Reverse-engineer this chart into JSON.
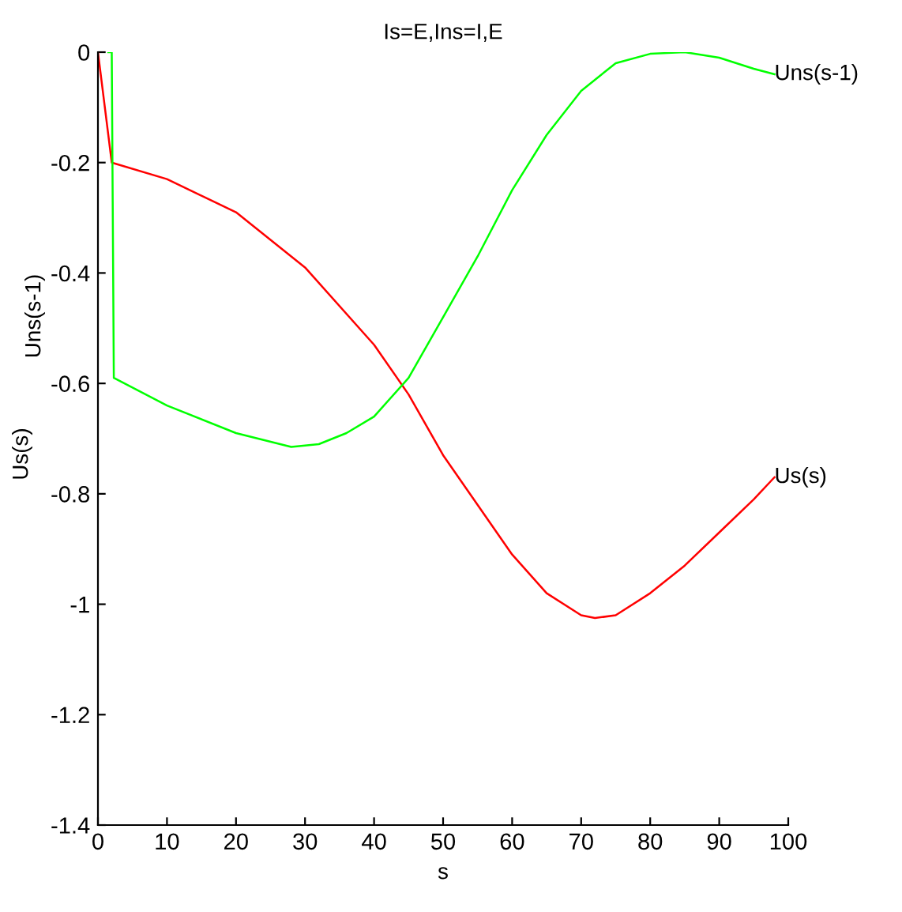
{
  "chart_data": {
    "type": "line",
    "title": "Is=E,Ins=I,E",
    "xlabel": "s",
    "ylabel": "Us(s)",
    "annotations": [
      "Uns(s-1)"
    ],
    "xlim": [
      0,
      100
    ],
    "xticks": [
      0,
      10,
      20,
      30,
      40,
      50,
      60,
      70,
      80,
      90,
      100
    ],
    "ylim": [
      -1.4,
      0
    ],
    "yticks": [
      -1.4,
      -1.2,
      -1,
      -0.8,
      -0.6,
      -0.4,
      -0.2,
      0
    ],
    "grid": false,
    "legend": false,
    "marker": "none",
    "line_style": "solid",
    "series": [
      {
        "name": "Us(s)",
        "color": "#ff0000",
        "x": [
          0,
          2,
          10,
          20,
          30,
          40,
          45,
          50,
          60,
          65,
          70,
          72,
          75,
          80,
          85,
          90,
          95,
          98
        ],
        "values": [
          0,
          -0.2,
          -0.23,
          -0.29,
          -0.39,
          -0.53,
          -0.62,
          -0.73,
          -0.91,
          -0.98,
          -1.02,
          -1.025,
          -1.02,
          -0.98,
          -0.93,
          -0.87,
          -0.81,
          -0.77
        ]
      },
      {
        "name": "Uns(s-1)",
        "color": "#00ff00",
        "x": [
          1.5,
          2,
          2.3,
          10,
          20,
          28,
          32,
          36,
          40,
          45,
          50,
          55,
          60,
          65,
          70,
          75,
          80,
          85,
          90,
          95,
          98
        ],
        "values": [
          0,
          0,
          -0.59,
          -0.64,
          -0.69,
          -0.715,
          -0.71,
          -0.69,
          -0.66,
          -0.59,
          -0.48,
          -0.37,
          -0.25,
          -0.15,
          -0.07,
          -0.02,
          -0.003,
          0,
          -0.01,
          -0.03,
          -0.04
        ]
      }
    ]
  }
}
